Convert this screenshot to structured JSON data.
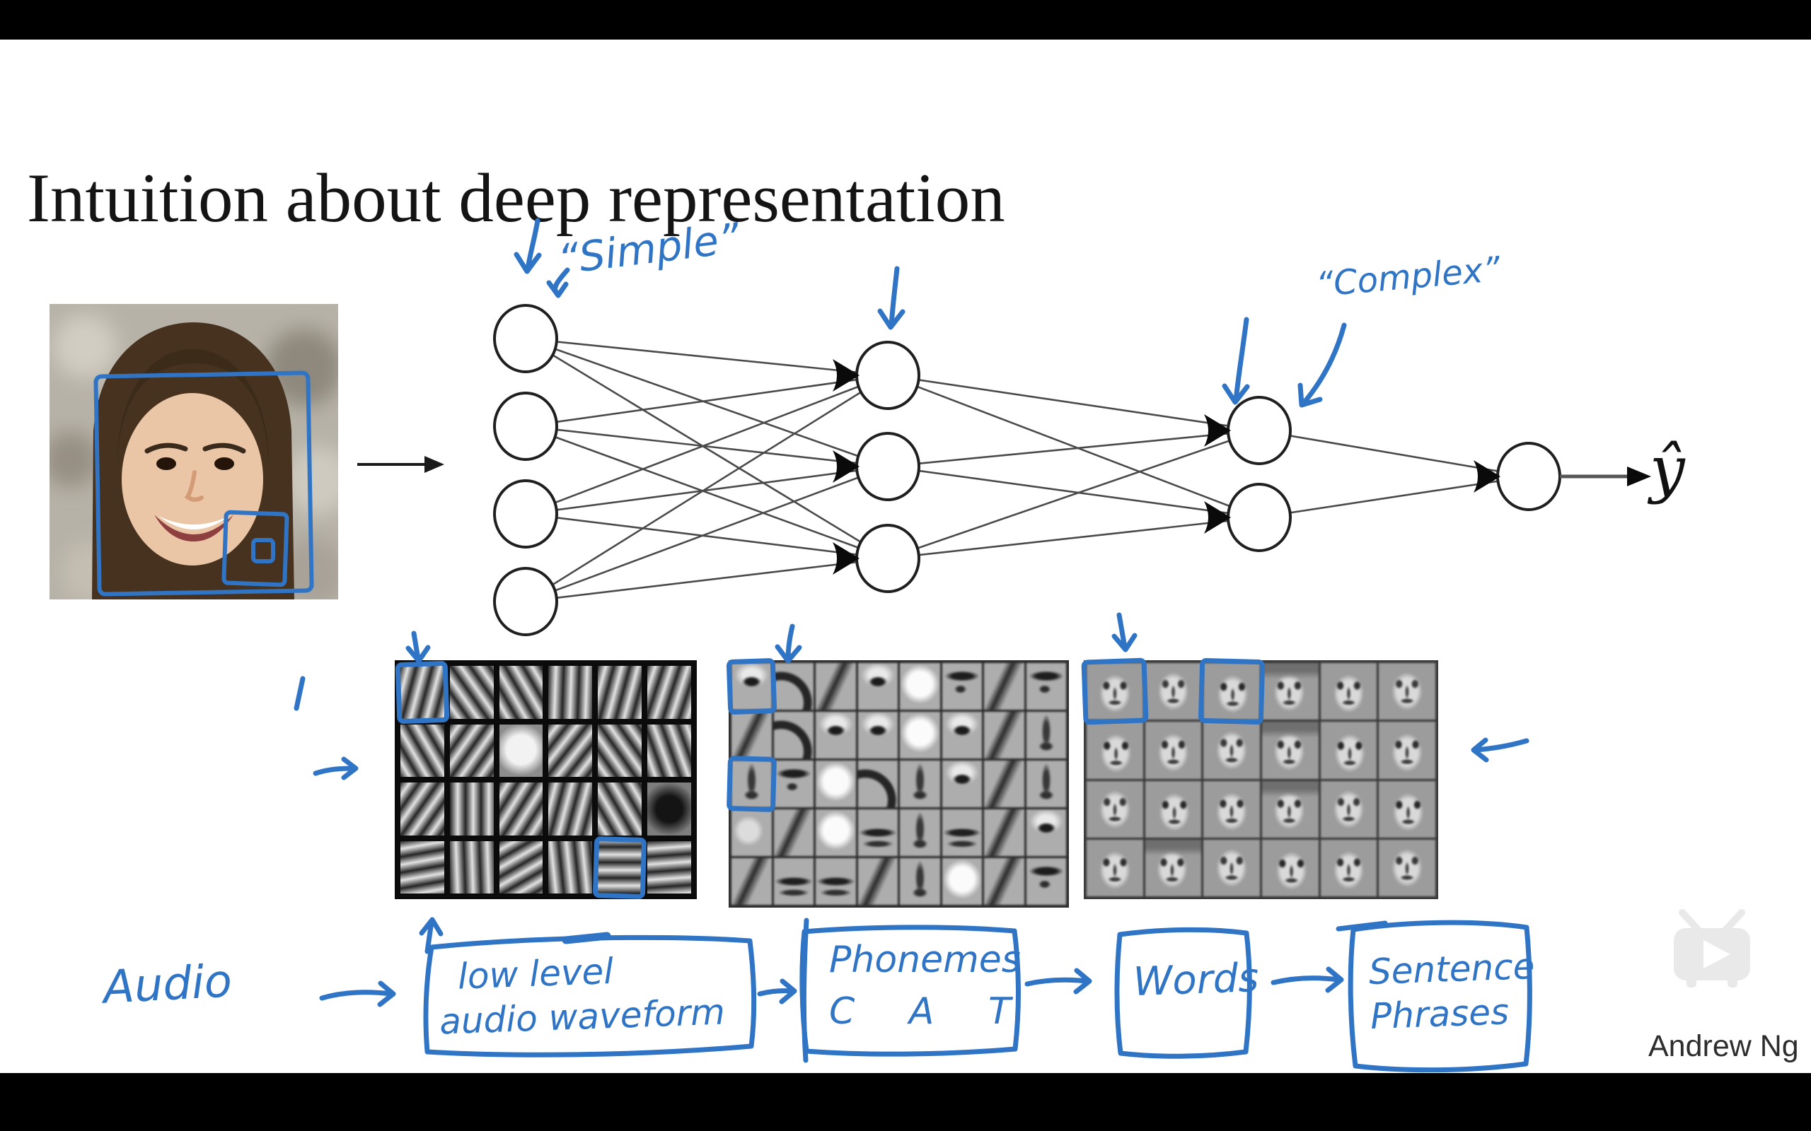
{
  "slide": {
    "title": "Intuition about deep representation",
    "credit": "Andrew Ng",
    "output_label": "ŷ"
  },
  "annotations": {
    "simple": "“Simple”",
    "complex": "“Complex”"
  },
  "flow": {
    "audio": "Audio",
    "steps": [
      {
        "lines": [
          "low level",
          "audio waveform"
        ]
      },
      {
        "lines": [
          "Phonemes",
          "C A T"
        ]
      },
      {
        "lines": [
          "Words",
          ""
        ]
      },
      {
        "lines": [
          "Sentence",
          "Phrases"
        ]
      }
    ]
  },
  "network": {
    "layers": [
      4,
      3,
      2,
      1
    ],
    "output_label": "ŷ"
  },
  "colors": {
    "ink": "#2f74c5",
    "net_line": "#4a4a4a",
    "node_stroke": "#1f1f1f",
    "title_text": "#141414"
  },
  "icons": {
    "play_tv": "tv-play-icon"
  },
  "grids": [
    {
      "name": "layer1-edge-features",
      "rows": 4,
      "cols": 6,
      "cell_style": "stripes",
      "cells": [
        [
          105,
          55,
          60,
          92,
          105,
          108
        ],
        [
          60,
          125,
          "light",
          128,
          55,
          70
        ],
        [
          125,
          90,
          122,
          105,
          60,
          "dark"
        ],
        [
          170,
          88,
          150,
          84,
          0,
          176
        ]
      ],
      "boxed": [
        {
          "row": 0,
          "col": 0
        },
        {
          "row": 3,
          "col": 4
        }
      ]
    },
    {
      "name": "layer2-facepart-features",
      "rows": 5,
      "cols": 8,
      "cell_style": "parts",
      "cells": [
        [
          "eye",
          "arc",
          "curve",
          "eye",
          "white",
          "brow",
          "curve",
          "brow"
        ],
        [
          "curve",
          "arc",
          "eye",
          "eye",
          "white",
          "eye",
          "curve",
          "nose"
        ],
        [
          "nose",
          "brow",
          "white",
          "arc",
          "nose",
          "eye",
          "curve",
          "nose"
        ],
        [
          "blob",
          "curve",
          "white",
          "mouth",
          "nose",
          "mouth",
          "curve",
          "eye"
        ],
        [
          "curve",
          "mouth",
          "mouth",
          "curve",
          "nose",
          "white",
          "curve",
          "brow"
        ]
      ],
      "boxed": [
        {
          "row": 0,
          "col": 0
        },
        {
          "row": 2,
          "col": 0
        }
      ]
    },
    {
      "name": "layer3-face-features",
      "rows": 4,
      "cols": 6,
      "cell_style": "faces",
      "cells": [
        [
          0,
          1,
          2,
          3,
          0,
          1
        ],
        [
          2,
          0,
          1,
          3,
          2,
          0
        ],
        [
          1,
          2,
          0,
          3,
          1,
          2
        ],
        [
          0,
          3,
          1,
          2,
          0,
          1
        ]
      ],
      "boxed": [
        {
          "row": 0,
          "col": 0
        },
        {
          "row": 0,
          "col": 2
        }
      ]
    }
  ]
}
